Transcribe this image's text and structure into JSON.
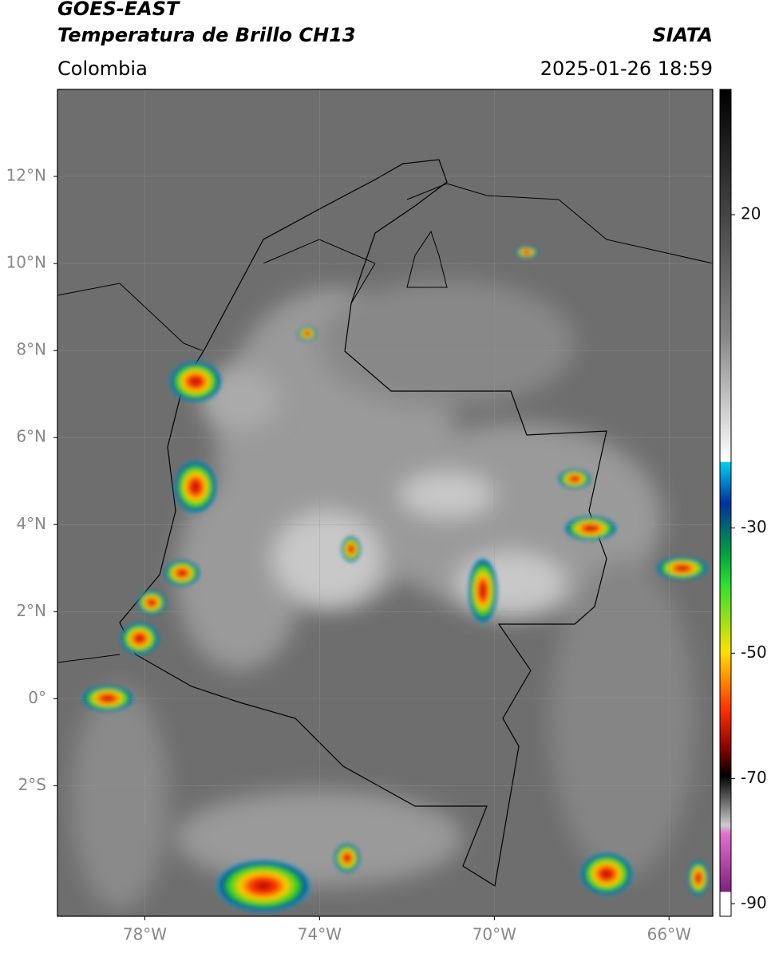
{
  "header": {
    "line1": "GOES-EAST",
    "line2": "Temperatura de Brillo CH13",
    "source": "SIATA",
    "region": "Colombia",
    "datetime": "2025-01-26 18:59"
  },
  "map": {
    "xlim": [
      -80,
      -65
    ],
    "ylim": [
      -5,
      14
    ],
    "xticks": [
      {
        "value": -78,
        "label": "78°W"
      },
      {
        "value": -74,
        "label": "74°W"
      },
      {
        "value": -70,
        "label": "70°W"
      },
      {
        "value": -66,
        "label": "66°W"
      }
    ],
    "yticks": [
      {
        "value": 12,
        "label": "12°N"
      },
      {
        "value": 10,
        "label": "10°N"
      },
      {
        "value": 8,
        "label": "8°N"
      },
      {
        "value": 6,
        "label": "6°N"
      },
      {
        "value": 4,
        "label": "4°N"
      },
      {
        "value": 2,
        "label": "2°N"
      },
      {
        "value": 0,
        "label": "0°"
      },
      {
        "value": -2,
        "label": "2°S"
      }
    ],
    "grid": true
  },
  "colorbar": {
    "lim": [
      -92,
      40
    ],
    "ticks": [
      20,
      -30,
      -50,
      -70,
      -90
    ]
  }
}
